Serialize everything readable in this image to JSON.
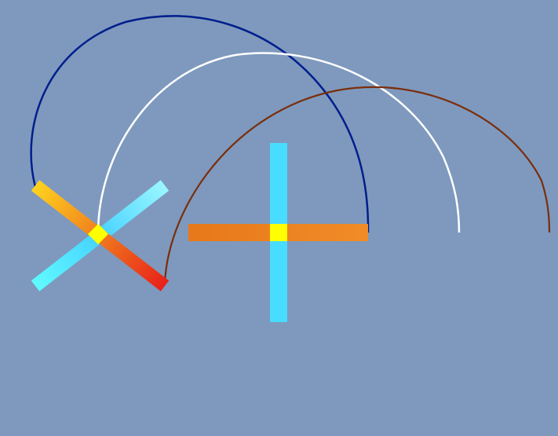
{
  "scene": {
    "background_color": "#7e99bd",
    "arcs": [
      {
        "name": "navy-arc",
        "color": "#001e8c"
      },
      {
        "name": "white-arc",
        "color": "#ffffff"
      },
      {
        "name": "brown-arc",
        "color": "#7a2e0c"
      }
    ],
    "crosses": [
      {
        "name": "x-cross",
        "bar_a_colors": [
          "#ffd21e",
          "#f07a1e",
          "#e8201a"
        ],
        "bar_b_colors": [
          "#5ffaff",
          "#46d2ff",
          "#9af6ff"
        ],
        "center_color": "#ffff00"
      },
      {
        "name": "plus-cross",
        "bar_a_colors": [
          "#e8781a",
          "#f08c28"
        ],
        "bar_b_colors": [
          "#48dcff",
          "#48dcff"
        ],
        "center_color": "#ffff00"
      }
    ]
  }
}
